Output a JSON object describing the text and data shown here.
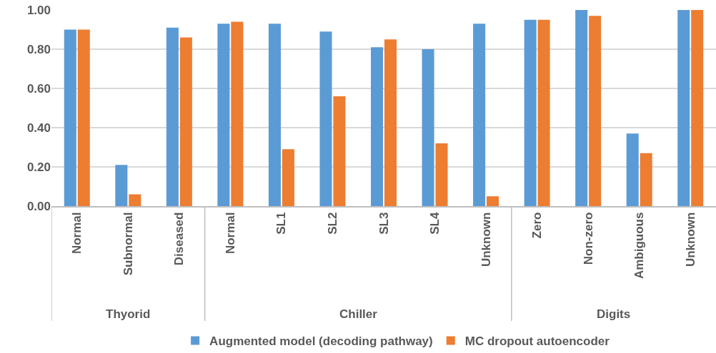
{
  "chart_data": {
    "type": "bar",
    "categories": [
      "Normal",
      "Subnormal",
      "Diseased",
      "Normal",
      "SL1",
      "SL2",
      "SL3",
      "SL4",
      "Unknown",
      "Zero",
      "Non-zero",
      "Ambiguous",
      "Unknown"
    ],
    "series": [
      {
        "name": "Augmented model (decoding pathway)",
        "color": "#5b9bd5",
        "values": [
          0.9,
          0.21,
          0.91,
          0.93,
          0.93,
          0.89,
          0.81,
          0.8,
          0.93,
          0.95,
          1.0,
          0.37,
          1.0
        ]
      },
      {
        "name": "MC dropout autoencoder",
        "color": "#ed7d31",
        "values": [
          0.9,
          0.06,
          0.86,
          0.94,
          0.29,
          0.56,
          0.85,
          0.32,
          0.05,
          0.95,
          0.97,
          0.27,
          1.0
        ]
      }
    ],
    "ylim": [
      0,
      1
    ],
    "yticks": [
      {
        "value": 0,
        "label": "0.00"
      },
      {
        "value": 0.2,
        "label": "0.20"
      },
      {
        "value": 0.4,
        "label": "0.40"
      },
      {
        "value": 0.6,
        "label": "0.60"
      },
      {
        "value": 0.8,
        "label": "0.80"
      },
      {
        "value": 1,
        "label": "1.00"
      }
    ],
    "grid": "y",
    "legend": "bottom",
    "annotations": [
      "Thyorid",
      "Chiller",
      "Digits"
    ]
  }
}
